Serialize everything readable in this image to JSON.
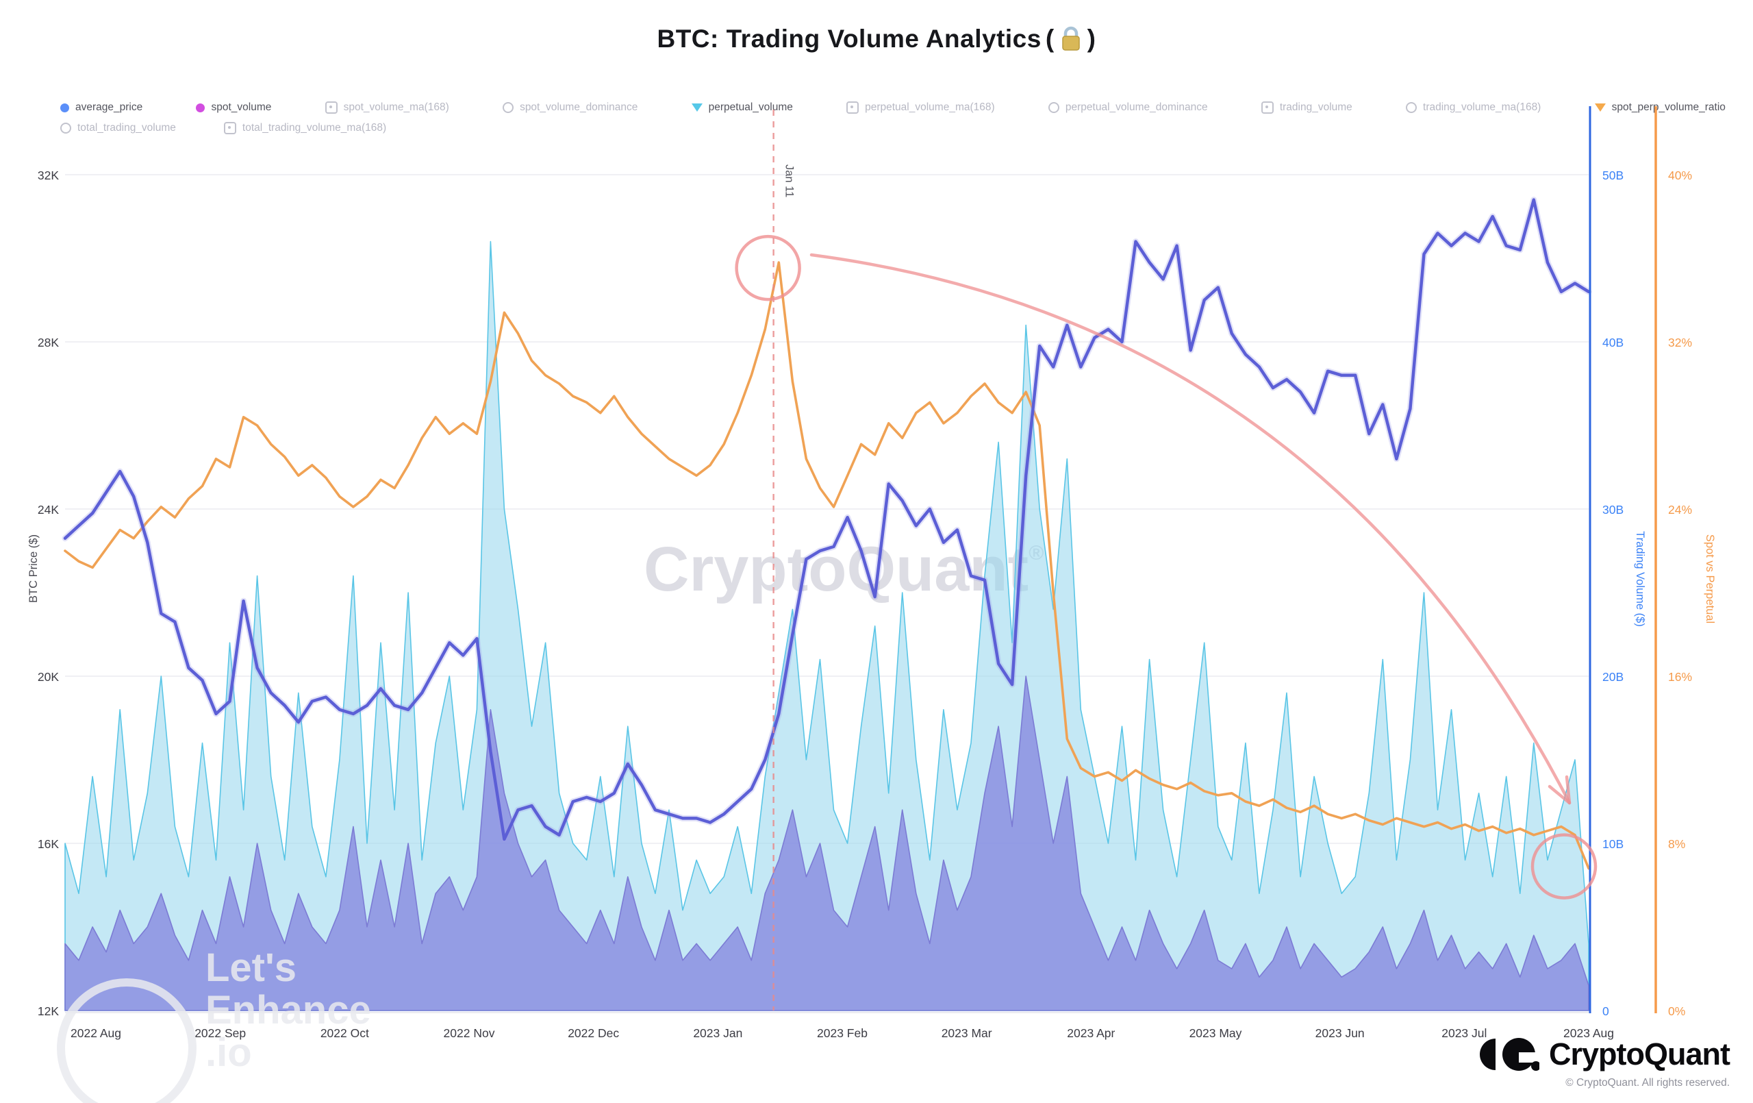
{
  "page": {
    "title": "BTC: Trading Volume Analytics",
    "title_paren_open": "(",
    "title_paren_close": ")",
    "lock_icon": "lock"
  },
  "legend": {
    "items": [
      {
        "label": "average_price",
        "marker": "dot",
        "color": "#5b8ff9",
        "active": true,
        "row": 1
      },
      {
        "label": "spot_volume",
        "marker": "dot",
        "color": "#d24ee0",
        "active": true,
        "row": 1
      },
      {
        "label": "spot_volume_ma(168)",
        "marker": "box",
        "color": "#c2c3cd",
        "active": false,
        "row": 1
      },
      {
        "label": "spot_volume_dominance",
        "marker": "circ",
        "color": "#c2c3cd",
        "active": false,
        "row": 1
      },
      {
        "label": "perpetual_volume",
        "marker": "tri",
        "color": "#56c8e8",
        "active": true,
        "row": 1
      },
      {
        "label": "perpetual_volume_ma(168)",
        "marker": "box",
        "color": "#c2c3cd",
        "active": false,
        "row": 1
      },
      {
        "label": "perpetual_volume_dominance",
        "marker": "circ",
        "color": "#c2c3cd",
        "active": false,
        "row": 1
      },
      {
        "label": "trading_volume",
        "marker": "box",
        "color": "#c2c3cd",
        "active": false,
        "row": 1
      },
      {
        "label": "trading_volume_ma(168)",
        "marker": "circ",
        "color": "#c2c3cd",
        "active": false,
        "row": 1
      },
      {
        "label": "spot_perp_volume_ratio",
        "marker": "tri",
        "color": "#f5a94b",
        "active": true,
        "row": 1
      },
      {
        "label": "total_trading_volume",
        "marker": "circ",
        "color": "#c2c3cd",
        "active": false,
        "row": 2
      },
      {
        "label": "total_trading_volume_ma(168)",
        "marker": "box",
        "color": "#c2c3cd",
        "active": false,
        "row": 2
      }
    ]
  },
  "chart_data": {
    "type": "mixed",
    "title": "BTC: Trading Volume Analytics",
    "x_range": [
      "2022 Aug",
      "2023 Aug"
    ],
    "x_tick_labels": [
      "2022 Aug",
      "2022 Sep",
      "2022 Oct",
      "2022 Nov",
      "2022 Dec",
      "2023 Jan",
      "2023 Feb",
      "2023 Mar",
      "2023 Apr",
      "2023 May",
      "2023 Jun",
      "2023 Jul",
      "2023 Aug"
    ],
    "grid": true,
    "axes": {
      "left": {
        "title": "BTC Price ($)",
        "ticks": [
          "32K",
          "28K",
          "24K",
          "20K",
          "16K",
          "12K"
        ],
        "min": 12,
        "max": 32,
        "color": "#3c3c44"
      },
      "volume": {
        "title": "Trading Volume ($)",
        "ticks": [
          "50B",
          "40B",
          "30B",
          "20B",
          "10B",
          "0"
        ],
        "min": 0,
        "max": 50,
        "color": "#3b82f6"
      },
      "ratio": {
        "title": "Spot vs Perpetual",
        "ticks": [
          "40%",
          "32%",
          "24%",
          "16%",
          "8%",
          "0%"
        ],
        "min": 0,
        "max": 40,
        "color": "#f59a4a"
      }
    },
    "series": [
      {
        "name": "perpetual_volume",
        "type": "area",
        "axis": "volume",
        "color": "#59c5e6",
        "fill": "rgba(148,214,236,0.55)",
        "values": [
          10,
          7,
          14,
          8,
          18,
          9,
          13,
          20,
          11,
          8,
          16,
          9,
          22,
          12,
          26,
          14,
          9,
          19,
          11,
          8,
          15,
          26,
          10,
          22,
          12,
          25,
          9,
          16,
          20,
          12,
          18,
          46,
          30,
          24,
          17,
          22,
          13,
          10,
          9,
          14,
          8,
          17,
          10,
          7,
          12,
          6,
          9,
          7,
          8,
          11,
          7,
          14,
          19,
          24,
          15,
          21,
          12,
          10,
          17,
          23,
          13,
          25,
          15,
          9,
          18,
          12,
          16,
          26,
          34,
          22,
          41,
          30,
          24,
          33,
          18,
          14,
          10,
          17,
          9,
          21,
          12,
          8,
          15,
          22,
          11,
          9,
          16,
          7,
          12,
          19,
          8,
          14,
          10,
          7,
          8,
          13,
          21,
          9,
          15,
          25,
          12,
          18,
          9,
          13,
          8,
          14,
          7,
          16,
          9,
          12,
          15,
          4
        ]
      },
      {
        "name": "spot_volume",
        "type": "area",
        "axis": "volume",
        "color": "#7b7bd4",
        "fill": "rgba(129,127,222,0.72)",
        "values": [
          4,
          3,
          5,
          3.5,
          6,
          4,
          5,
          7,
          4.5,
          3,
          6,
          4,
          8,
          5,
          10,
          6,
          4,
          7,
          5,
          4,
          6,
          11,
          5,
          9,
          5,
          10,
          4,
          7,
          8,
          6,
          8,
          18,
          13,
          10,
          8,
          9,
          6,
          5,
          4,
          6,
          4,
          8,
          5,
          3,
          6,
          3,
          4,
          3,
          4,
          5,
          3,
          7,
          9,
          12,
          8,
          10,
          6,
          5,
          8,
          11,
          6,
          12,
          7,
          4,
          9,
          6,
          8,
          13,
          17,
          11,
          20,
          15,
          10,
          14,
          7,
          5,
          3,
          5,
          3,
          6,
          4,
          2.5,
          4,
          6,
          3,
          2.5,
          4,
          2,
          3,
          5,
          2.5,
          4,
          3,
          2,
          2.5,
          3.5,
          5,
          2.5,
          4,
          6,
          3,
          4.5,
          2.5,
          3.5,
          2.5,
          4,
          2,
          4.5,
          2.5,
          3,
          4,
          1.5
        ]
      },
      {
        "name": "spot_perp_volume_ratio",
        "type": "line",
        "axis": "ratio",
        "color": "#f0a254",
        "values": [
          22,
          21.5,
          21.2,
          22.1,
          23,
          22.6,
          23.4,
          24.1,
          23.6,
          24.5,
          25.1,
          26.4,
          26,
          28.4,
          28,
          27.1,
          26.5,
          25.6,
          26.1,
          25.5,
          24.6,
          24.1,
          24.6,
          25.4,
          25,
          26.1,
          27.4,
          28.4,
          27.6,
          28.1,
          27.6,
          30.1,
          33.4,
          32.4,
          31.1,
          30.4,
          30,
          29.4,
          29.1,
          28.6,
          29.4,
          28.4,
          27.6,
          27,
          26.4,
          26,
          25.6,
          26.1,
          27.1,
          28.6,
          30.4,
          32.6,
          35.8,
          30.1,
          26.4,
          25,
          24.1,
          25.6,
          27.1,
          26.6,
          28.1,
          27.4,
          28.6,
          29.1,
          28.1,
          28.6,
          29.4,
          30,
          29.1,
          28.6,
          29.6,
          28,
          20,
          13,
          11.6,
          11.2,
          11.4,
          11,
          11.5,
          11.1,
          10.8,
          10.6,
          10.9,
          10.5,
          10.3,
          10.4,
          10,
          9.8,
          10.1,
          9.7,
          9.5,
          9.8,
          9.4,
          9.2,
          9.4,
          9.1,
          8.9,
          9.2,
          9,
          8.8,
          9,
          8.7,
          8.9,
          8.6,
          8.8,
          8.5,
          8.7,
          8.4,
          8.6,
          8.8,
          8.4,
          6.8
        ]
      },
      {
        "name": "average_price",
        "type": "line",
        "axis": "left",
        "color": "#5c5fd6",
        "values": [
          23.3,
          23.6,
          23.9,
          24.4,
          24.9,
          24.3,
          23.2,
          21.5,
          21.3,
          20.2,
          19.9,
          19.1,
          19.4,
          21.8,
          20.2,
          19.6,
          19.3,
          18.9,
          19.4,
          19.5,
          19.2,
          19.1,
          19.3,
          19.7,
          19.3,
          19.2,
          19.6,
          20.2,
          20.8,
          20.5,
          20.9,
          18.2,
          16.1,
          16.8,
          16.9,
          16.4,
          16.2,
          17,
          17.1,
          17,
          17.2,
          17.9,
          17.4,
          16.8,
          16.7,
          16.6,
          16.6,
          16.5,
          16.7,
          17,
          17.3,
          18,
          19.1,
          21,
          22.8,
          23,
          23.1,
          23.8,
          23,
          21.9,
          24.6,
          24.2,
          23.6,
          24,
          23.2,
          23.5,
          22.4,
          22.3,
          20.3,
          19.8,
          24.8,
          27.9,
          27.4,
          28.4,
          27.4,
          28.1,
          28.3,
          28,
          30.4,
          29.9,
          29.5,
          30.3,
          27.8,
          29,
          29.3,
          28.2,
          27.7,
          27.4,
          26.9,
          27.1,
          26.8,
          26.3,
          27.3,
          27.2,
          27.2,
          25.8,
          26.5,
          25.2,
          26.4,
          30.1,
          30.6,
          30.3,
          30.6,
          30.4,
          31,
          30.3,
          30.2,
          31.4,
          29.9,
          29.2,
          29.4,
          29.2
        ]
      }
    ],
    "annotations": {
      "event_line": {
        "x_frac": 0.465,
        "label": "Jan 11",
        "color": "#e88a8a"
      },
      "circle_peak": {
        "x_frac": 0.465,
        "ratio_value": 35.8
      },
      "circle_end": {
        "x_frac": 0.991,
        "ratio_value": 6.8
      },
      "arrow_color": "#ef8f90"
    },
    "watermark_center": "CryptoQuant",
    "watermark_center_reg": "®",
    "watermark_corner": [
      "Let's",
      "Enhance",
      ".io"
    ]
  },
  "footer": {
    "brand": "CryptoQuant",
    "copyright": "© CryptoQuant. All rights reserved."
  }
}
